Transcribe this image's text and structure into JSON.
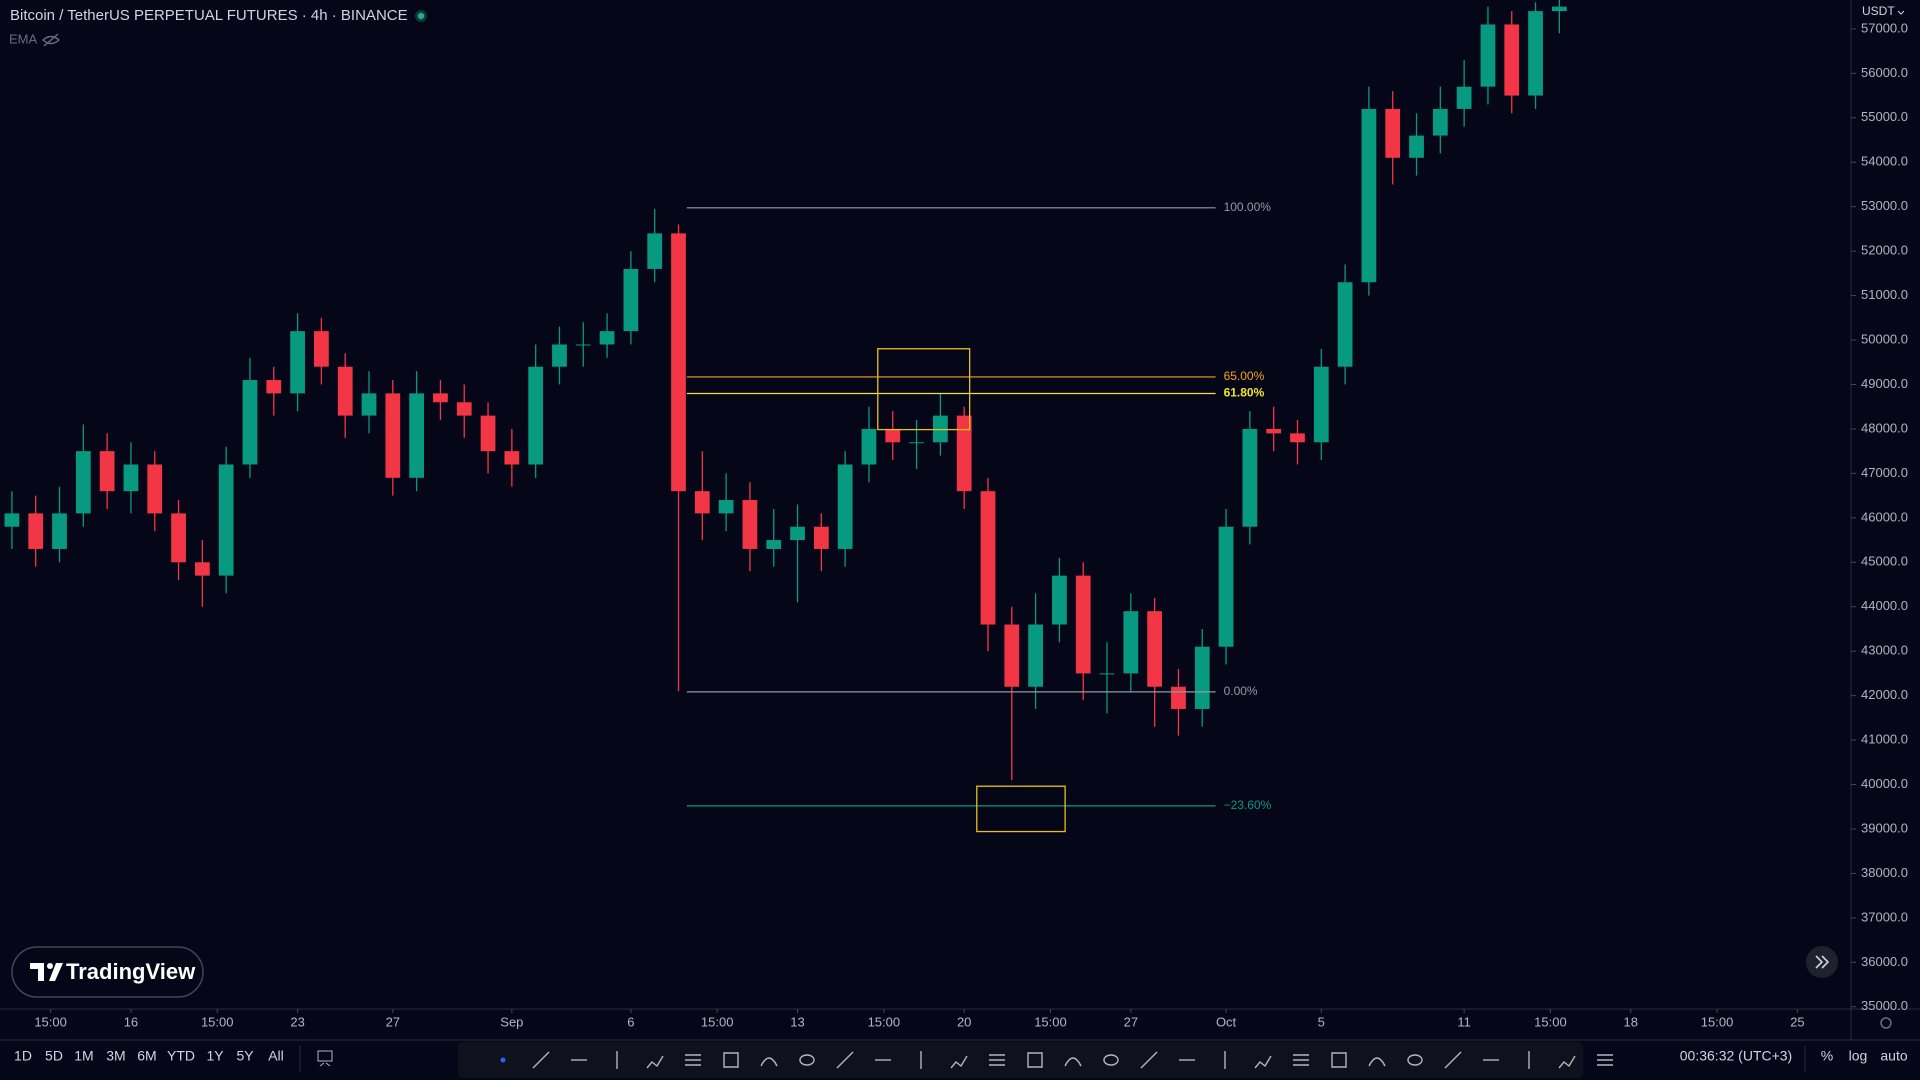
{
  "header": {
    "title": "Bitcoin / TetherUS PERPETUAL FUTURES · 4h · BINANCE",
    "indicator": "EMA",
    "currency": "USDT"
  },
  "logo": "TradingView",
  "chart_data": {
    "type": "candlestick",
    "up_color": "#089981",
    "down_color": "#f23645",
    "x": [
      10,
      11,
      12,
      13,
      14,
      15,
      16,
      17,
      18,
      19,
      20,
      21,
      22,
      23,
      24,
      25,
      26,
      27,
      28,
      29,
      30,
      31,
      32,
      33,
      34,
      35,
      36,
      37,
      38,
      39,
      40,
      41,
      42,
      43,
      44,
      45,
      46,
      47,
      48,
      49,
      50,
      51,
      52,
      53,
      54,
      55,
      56,
      57,
      58,
      59,
      60,
      61,
      62,
      63,
      64,
      65,
      66,
      67,
      68,
      69,
      70,
      71,
      72,
      73,
      74,
      75
    ],
    "open": [
      45800,
      46100,
      45300,
      46100,
      47500,
      46600,
      47200,
      46100,
      45000,
      44700,
      47200,
      49100,
      48800,
      50200,
      49400,
      48300,
      48800,
      46900,
      48800,
      48600,
      48300,
      47500,
      47200,
      49400,
      49900,
      49900,
      50200,
      51600,
      52400,
      46600,
      46100,
      46400,
      45300,
      45500,
      45800,
      45300,
      47200,
      48000,
      47700,
      47700,
      48300,
      46600,
      43600,
      42200,
      43600,
      44700,
      42500,
      42500,
      43900,
      42200,
      41700,
      43100,
      45800,
      48000,
      47900,
      47700,
      49400,
      51300,
      55200,
      54100,
      54600,
      55200,
      55700,
      57100,
      55500,
      57400
    ],
    "high": [
      46600,
      46500,
      46700,
      48100,
      47900,
      47700,
      47500,
      46400,
      45500,
      47600,
      49600,
      49400,
      50600,
      50500,
      49700,
      49300,
      49100,
      49300,
      49100,
      49000,
      48600,
      48000,
      49900,
      50300,
      50400,
      50600,
      52000,
      52950,
      52600,
      47500,
      47000,
      46800,
      46200,
      46300,
      46100,
      47500,
      48500,
      48400,
      48200,
      48800,
      48500,
      46900,
      44000,
      44300,
      45100,
      45000,
      43200,
      44300,
      44200,
      42600,
      43500,
      46200,
      48400,
      48500,
      48200,
      49800,
      51700,
      55700,
      55600,
      55100,
      55700,
      56300,
      57500,
      57400,
      57600,
      57650
    ],
    "low": [
      45300,
      44900,
      45000,
      45800,
      46200,
      46100,
      45700,
      44600,
      44000,
      44300,
      46900,
      48300,
      48400,
      49000,
      47800,
      47900,
      46500,
      46600,
      48200,
      47800,
      47000,
      46700,
      46900,
      49000,
      49400,
      49600,
      49900,
      51300,
      42100,
      45500,
      45700,
      44800,
      44900,
      44100,
      44800,
      44900,
      46800,
      47300,
      47100,
      47400,
      46200,
      43000,
      40100,
      41700,
      43200,
      41900,
      41600,
      42100,
      41300,
      41100,
      41300,
      42700,
      45400,
      47500,
      47200,
      47300,
      49000,
      51000,
      53500,
      53700,
      54200,
      54800,
      55300,
      55100,
      55200,
      56900
    ],
    "close": [
      46100,
      45300,
      46100,
      47500,
      46600,
      47200,
      46100,
      45000,
      44700,
      47200,
      49100,
      48800,
      50200,
      49400,
      48300,
      48800,
      46900,
      48800,
      48600,
      48300,
      47500,
      47200,
      49400,
      49900,
      49900,
      50200,
      51600,
      52400,
      46600,
      46100,
      46400,
      45300,
      45500,
      45800,
      45300,
      47200,
      48000,
      47700,
      47700,
      48300,
      46600,
      43600,
      42200,
      43600,
      44700,
      42500,
      42500,
      43900,
      42200,
      41700,
      43100,
      45800,
      48000,
      47900,
      47700,
      49400,
      51300,
      55200,
      54100,
      54600,
      55200,
      55700,
      57100,
      55500,
      57400,
      57500
    ],
    "xlim": [
      9.5,
      87.25
    ],
    "ylim": [
      34950,
      57650
    ],
    "xticks": [
      {
        "value": 11.625,
        "label": "15:00"
      },
      {
        "value": 15,
        "label": "16"
      },
      {
        "value": 18.625,
        "label": "15:00"
      },
      {
        "value": 22,
        "label": "23"
      },
      {
        "value": 26,
        "label": "27"
      },
      {
        "value": 31,
        "label": "Sep"
      },
      {
        "value": 36,
        "label": "6"
      },
      {
        "value": 39.625,
        "label": "15:00"
      },
      {
        "value": 43,
        "label": "13"
      },
      {
        "value": 46.625,
        "label": "15:00"
      },
      {
        "value": 50,
        "label": "20"
      },
      {
        "value": 53.625,
        "label": "15:00"
      },
      {
        "value": 57,
        "label": "27"
      },
      {
        "value": 61,
        "label": "Oct"
      },
      {
        "value": 65,
        "label": "5"
      },
      {
        "value": 71,
        "label": "11"
      },
      {
        "value": 74.625,
        "label": "15:00"
      },
      {
        "value": 78,
        "label": "18"
      },
      {
        "value": 81.625,
        "label": "15:00"
      },
      {
        "value": 85,
        "label": "25"
      }
    ],
    "yticks": [
      {
        "value": 35000,
        "label": "35000.0"
      },
      {
        "value": 36000,
        "label": "36000.0"
      },
      {
        "value": 37000,
        "label": "37000.0"
      },
      {
        "value": 38000,
        "label": "38000.0"
      },
      {
        "value": 39000,
        "label": "39000.0"
      },
      {
        "value": 40000,
        "label": "40000.0"
      },
      {
        "value": 41000,
        "label": "41000.0"
      },
      {
        "value": 42000,
        "label": "42000.0"
      },
      {
        "value": 43000,
        "label": "43000.0"
      },
      {
        "value": 44000,
        "label": "44000.0"
      },
      {
        "value": 45000,
        "label": "45000.0"
      },
      {
        "value": 46000,
        "label": "46000.0"
      },
      {
        "value": 47000,
        "label": "47000.0"
      },
      {
        "value": 48000,
        "label": "48000.0"
      },
      {
        "value": 49000,
        "label": "49000.0"
      },
      {
        "value": 50000,
        "label": "50000.0"
      },
      {
        "value": 51000,
        "label": "51000.0"
      },
      {
        "value": 52000,
        "label": "52000.0"
      },
      {
        "value": 53000,
        "label": "53000.0"
      },
      {
        "value": 54000,
        "label": "54000.0"
      },
      {
        "value": 55000,
        "label": "55000.0"
      },
      {
        "value": 56000,
        "label": "56000.0"
      },
      {
        "value": 57000,
        "label": "57000.0"
      }
    ],
    "fib": {
      "x_start": 38.35,
      "x_end": 60.56,
      "levels": [
        {
          "label": "100.00%",
          "price": 52975,
          "color": "#9598a1"
        },
        {
          "label": "65.00%",
          "price": 49170,
          "color": "#f7a21b"
        },
        {
          "label": "61.80%",
          "price": 48798,
          "color": "#f0e629"
        },
        {
          "label": "0.00%",
          "price": 42085,
          "color": "#9598a1"
        },
        {
          "label": "−23.60%",
          "price": 39520,
          "color": "#089981"
        }
      ]
    },
    "boxes": [
      {
        "x": [
          46.37,
          50.23
        ],
        "y": [
          49804,
          47985
        ],
        "color": "#e7c11b"
      },
      {
        "x": [
          50.53,
          54.24
        ],
        "y": [
          39962,
          38942
        ],
        "color": "#e7c11b"
      }
    ]
  },
  "toolbar": {
    "ranges": [
      "1D",
      "5D",
      "1M",
      "3M",
      "6M",
      "YTD",
      "1Y",
      "5Y",
      "All"
    ],
    "clock": "00:36:32 (UTC+3)",
    "options": [
      "%",
      "log",
      "auto"
    ]
  }
}
